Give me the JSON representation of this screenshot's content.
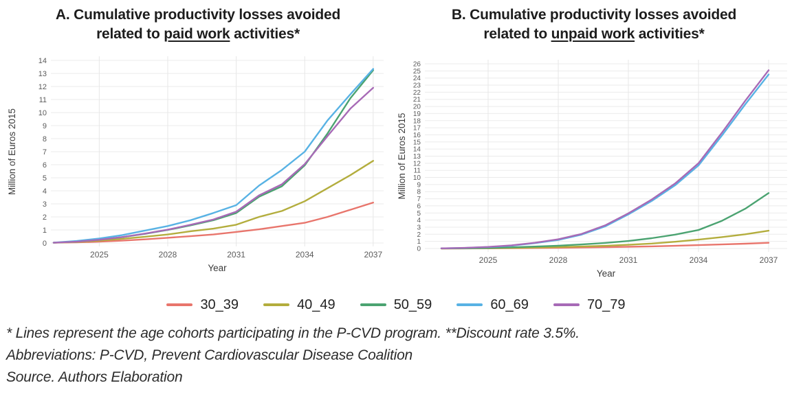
{
  "panels": [
    {
      "id": "A",
      "title_line1": "A. Cumulative productivity losses avoided",
      "title_line2_pre": "related to ",
      "title_line2_underline": "paid work",
      "title_line2_post": " activities*"
    },
    {
      "id": "B",
      "title_line1": "B. Cumulative productivity losses avoided",
      "title_line2_pre": "related to ",
      "title_line2_underline": "unpaid work",
      "title_line2_post": " activities*"
    }
  ],
  "legend": {
    "items": [
      {
        "label": "30_39",
        "color": "#e8756c"
      },
      {
        "label": "40_49",
        "color": "#b3ad3d"
      },
      {
        "label": "50_59",
        "color": "#4ba371"
      },
      {
        "label": "60_69",
        "color": "#58b2e4"
      },
      {
        "label": "70_79",
        "color": "#a76ab6"
      }
    ]
  },
  "footnotes": {
    "line1": "* Lines represent the age cohorts participating in the P-CVD program. **Discount rate 3.5%.",
    "line2": "Abbreviations: P-CVD, Prevent Cardiovascular Disease Coalition",
    "line3": "Source. Authors Elaboration"
  },
  "chart_data": [
    {
      "type": "line",
      "panel": "A",
      "title": "A. Cumulative productivity losses avoided related to paid work activities*",
      "underlined_phrase": "paid work",
      "xlabel": "Year",
      "ylabel": "Million of Euros 2015",
      "x": [
        2023,
        2024,
        2025,
        2026,
        2027,
        2028,
        2029,
        2030,
        2031,
        2032,
        2033,
        2034,
        2035,
        2036,
        2037
      ],
      "xticks": [
        2025,
        2028,
        2031,
        2034,
        2037
      ],
      "ylim": [
        0,
        14
      ],
      "ytick_step": 1,
      "grid": true,
      "legend_position": "bottom-shared",
      "series": [
        {
          "name": "30_39",
          "color": "#e8756c",
          "values": [
            0.02,
            0.05,
            0.1,
            0.18,
            0.28,
            0.4,
            0.52,
            0.65,
            0.85,
            1.05,
            1.3,
            1.55,
            2.0,
            2.55,
            3.1
          ]
        },
        {
          "name": "40_49",
          "color": "#b3ad3d",
          "values": [
            0.02,
            0.08,
            0.18,
            0.32,
            0.48,
            0.65,
            0.9,
            1.1,
            1.4,
            2.0,
            2.45,
            3.2,
            4.2,
            5.2,
            6.3
          ]
        },
        {
          "name": "50_59",
          "color": "#4ba371",
          "values": [
            0.02,
            0.1,
            0.25,
            0.45,
            0.7,
            1.0,
            1.35,
            1.75,
            2.3,
            3.55,
            4.35,
            5.95,
            8.4,
            11.1,
            13.25
          ]
        },
        {
          "name": "60_69",
          "color": "#58b2e4",
          "values": [
            0.03,
            0.15,
            0.35,
            0.6,
            0.95,
            1.3,
            1.75,
            2.3,
            2.9,
            4.4,
            5.6,
            7.0,
            9.4,
            11.4,
            13.35
          ]
        },
        {
          "name": "70_79",
          "color": "#a76ab6",
          "values": [
            0.02,
            0.1,
            0.25,
            0.45,
            0.72,
            1.02,
            1.4,
            1.8,
            2.4,
            3.65,
            4.5,
            6.05,
            8.2,
            10.3,
            11.9
          ]
        }
      ]
    },
    {
      "type": "line",
      "panel": "B",
      "title": "B. Cumulative productivity losses avoided related to unpaid work activities*",
      "underlined_phrase": "unpaid work",
      "xlabel": "Year",
      "ylabel": "Million of Euros 2015",
      "x": [
        2023,
        2024,
        2025,
        2026,
        2027,
        2028,
        2029,
        2030,
        2031,
        2032,
        2033,
        2034,
        2035,
        2036,
        2037
      ],
      "xticks": [
        2025,
        2028,
        2031,
        2034,
        2037
      ],
      "ylim": [
        0,
        26
      ],
      "ytick_step": 1,
      "grid": true,
      "legend_position": "bottom-shared",
      "series": [
        {
          "name": "30_39",
          "color": "#e8756c",
          "values": [
            0.0,
            0.01,
            0.02,
            0.04,
            0.07,
            0.1,
            0.14,
            0.18,
            0.24,
            0.3,
            0.38,
            0.47,
            0.57,
            0.68,
            0.8
          ]
        },
        {
          "name": "40_49",
          "color": "#b3ad3d",
          "values": [
            0.0,
            0.01,
            0.04,
            0.08,
            0.13,
            0.2,
            0.28,
            0.38,
            0.52,
            0.7,
            0.95,
            1.25,
            1.6,
            2.0,
            2.5
          ]
        },
        {
          "name": "50_59",
          "color": "#4ba371",
          "values": [
            0.01,
            0.03,
            0.08,
            0.16,
            0.27,
            0.4,
            0.57,
            0.78,
            1.05,
            1.45,
            1.95,
            2.6,
            3.9,
            5.6,
            7.8
          ]
        },
        {
          "name": "60_69",
          "color": "#58b2e4",
          "values": [
            0.02,
            0.08,
            0.2,
            0.4,
            0.75,
            1.2,
            1.95,
            3.1,
            4.8,
            6.7,
            8.9,
            11.7,
            15.9,
            20.3,
            24.5
          ]
        },
        {
          "name": "70_79",
          "color": "#a76ab6",
          "values": [
            0.02,
            0.09,
            0.22,
            0.44,
            0.8,
            1.3,
            2.05,
            3.25,
            4.95,
            6.9,
            9.15,
            12.0,
            16.3,
            20.8,
            25.1
          ]
        }
      ]
    }
  ]
}
